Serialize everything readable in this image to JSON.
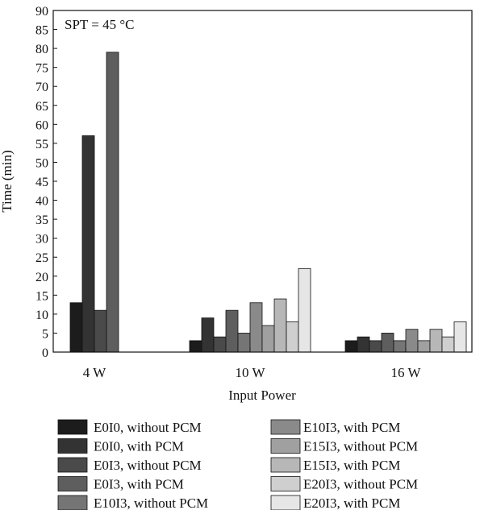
{
  "chart_data": {
    "type": "bar",
    "title": "",
    "annotation": "SPT = 45 °C",
    "xlabel": "Input Power",
    "ylabel": "Time (min)",
    "ylim": [
      0,
      90
    ],
    "yticks": [
      0,
      5,
      10,
      15,
      20,
      25,
      30,
      35,
      40,
      45,
      50,
      55,
      60,
      65,
      70,
      75,
      80,
      85,
      90
    ],
    "grid": false,
    "legend_position": "bottom",
    "categories": [
      "4 W",
      "10 W",
      "16 W"
    ],
    "series": [
      {
        "name": "E0I0, without PCM",
        "color": "#1c1c1c",
        "values": [
          13,
          3,
          3
        ]
      },
      {
        "name": "E0I0, with PCM",
        "color": "#333333",
        "values": [
          57,
          9,
          4
        ]
      },
      {
        "name": "E0I3, without PCM",
        "color": "#4a4a4a",
        "values": [
          11,
          4,
          3
        ]
      },
      {
        "name": "E0I3, with PCM",
        "color": "#5e5e5e",
        "values": [
          79,
          11,
          5
        ]
      },
      {
        "name": "E10I3, without PCM",
        "color": "#757575",
        "values": [
          null,
          5,
          3
        ]
      },
      {
        "name": "E10I3, with PCM",
        "color": "#8a8a8a",
        "values": [
          null,
          13,
          6
        ]
      },
      {
        "name": "E15I3, without PCM",
        "color": "#a0a0a0",
        "values": [
          null,
          7,
          3
        ]
      },
      {
        "name": "E15I3, with PCM",
        "color": "#b7b7b7",
        "values": [
          null,
          14,
          6
        ]
      },
      {
        "name": "E20I3, without PCM",
        "color": "#cfcfcf",
        "values": [
          null,
          8,
          4
        ]
      },
      {
        "name": "E20I3, with PCM",
        "color": "#e6e6e6",
        "values": [
          null,
          22,
          8
        ]
      }
    ]
  }
}
